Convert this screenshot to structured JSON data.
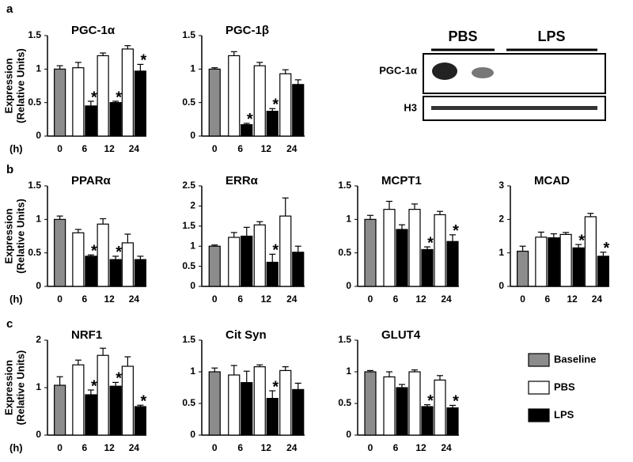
{
  "panel_labels": [
    "a",
    "b",
    "c"
  ],
  "y_label": [
    "Expression",
    "(Relative Units)"
  ],
  "x_label": "(h)",
  "blot": {
    "groups": [
      "PBS",
      "LPS"
    ],
    "rows": [
      "PGC-1α",
      "H3"
    ]
  },
  "chart_data": [
    {
      "type": "bar",
      "title": "PGC-1α",
      "categories": [
        "0",
        "6",
        "12",
        "24"
      ],
      "ylim": [
        0,
        1.5
      ],
      "yticks": [
        0,
        0.5,
        1,
        1.5
      ],
      "series": [
        {
          "name": "Baseline",
          "color": "#8c8c8c",
          "values": [
            1.0,
            null,
            null,
            null
          ],
          "errors": [
            0.05,
            null,
            null,
            null
          ]
        },
        {
          "name": "PBS",
          "color": "#ffffff",
          "values": [
            null,
            1.02,
            1.2,
            1.3
          ],
          "errors": [
            null,
            0.08,
            0.04,
            0.05
          ]
        },
        {
          "name": "LPS",
          "color": "#000000",
          "values": [
            null,
            0.45,
            0.5,
            0.97
          ],
          "errors": [
            null,
            0.07,
            0.02,
            0.1
          ]
        }
      ],
      "annotations": [
        {
          "text": "*",
          "category": "6"
        },
        {
          "text": "*",
          "category": "12"
        },
        {
          "text": "*",
          "category": "24"
        }
      ]
    },
    {
      "type": "bar",
      "title": "PGC-1β",
      "categories": [
        "0",
        "6",
        "12",
        "24"
      ],
      "ylim": [
        0,
        1.5
      ],
      "yticks": [
        0,
        0.5,
        1,
        1.5
      ],
      "series": [
        {
          "name": "Baseline",
          "color": "#8c8c8c",
          "values": [
            1.0,
            null,
            null,
            null
          ],
          "errors": [
            0.02,
            null,
            null,
            null
          ]
        },
        {
          "name": "PBS",
          "color": "#ffffff",
          "values": [
            null,
            1.2,
            1.05,
            0.93
          ],
          "errors": [
            null,
            0.06,
            0.05,
            0.06
          ]
        },
        {
          "name": "LPS",
          "color": "#000000",
          "values": [
            null,
            0.17,
            0.37,
            0.77
          ],
          "errors": [
            null,
            0.02,
            0.04,
            0.07
          ]
        }
      ],
      "annotations": [
        {
          "text": "*",
          "category": "6"
        },
        {
          "text": "*",
          "category": "12"
        }
      ]
    },
    {
      "type": "bar",
      "title": "PPARα",
      "categories": [
        "0",
        "6",
        "12",
        "24"
      ],
      "ylim": [
        0,
        1.5
      ],
      "yticks": [
        0,
        0.5,
        1,
        1.5
      ],
      "series": [
        {
          "name": "Baseline",
          "color": "#8c8c8c",
          "values": [
            1.0,
            null,
            null,
            null
          ],
          "errors": [
            0.05,
            null,
            null,
            null
          ]
        },
        {
          "name": "PBS",
          "color": "#ffffff",
          "values": [
            null,
            0.8,
            0.93,
            0.65
          ],
          "errors": [
            null,
            0.05,
            0.08,
            0.13
          ]
        },
        {
          "name": "LPS",
          "color": "#000000",
          "values": [
            null,
            0.45,
            0.4,
            0.4
          ],
          "errors": [
            null,
            0.02,
            0.05,
            0.05
          ]
        }
      ],
      "annotations": [
        {
          "text": "*",
          "category": "6"
        },
        {
          "text": "*",
          "category": "12"
        }
      ]
    },
    {
      "type": "bar",
      "title": "ERRα",
      "categories": [
        "0",
        "6",
        "12",
        "24"
      ],
      "ylim": [
        0,
        2.5
      ],
      "yticks": [
        0,
        0.5,
        1,
        1.5,
        2,
        2.5
      ],
      "series": [
        {
          "name": "Baseline",
          "color": "#8c8c8c",
          "values": [
            1.0,
            null,
            null,
            null
          ],
          "errors": [
            0.03,
            null,
            null,
            null
          ]
        },
        {
          "name": "PBS",
          "color": "#ffffff",
          "values": [
            null,
            1.22,
            1.53,
            1.75
          ],
          "errors": [
            null,
            0.12,
            0.08,
            0.45
          ]
        },
        {
          "name": "LPS",
          "color": "#000000",
          "values": [
            null,
            1.25,
            0.6,
            0.85
          ],
          "errors": [
            null,
            0.22,
            0.2,
            0.15
          ]
        }
      ],
      "annotations": [
        {
          "text": "*",
          "category": "12"
        }
      ]
    },
    {
      "type": "bar",
      "title": "MCPT1",
      "categories": [
        "0",
        "6",
        "12",
        "24"
      ],
      "ylim": [
        0,
        1.5
      ],
      "yticks": [
        0,
        0.5,
        1,
        1.5
      ],
      "series": [
        {
          "name": "Baseline",
          "color": "#8c8c8c",
          "values": [
            1.0,
            null,
            null,
            null
          ],
          "errors": [
            0.06,
            null,
            null,
            null
          ]
        },
        {
          "name": "PBS",
          "color": "#ffffff",
          "values": [
            null,
            1.15,
            1.15,
            1.07
          ],
          "errors": [
            null,
            0.12,
            0.08,
            0.05
          ]
        },
        {
          "name": "LPS",
          "color": "#000000",
          "values": [
            null,
            0.85,
            0.55,
            0.67
          ],
          "errors": [
            null,
            0.07,
            0.04,
            0.1
          ]
        }
      ],
      "annotations": [
        {
          "text": "*",
          "category": "12"
        },
        {
          "text": "*",
          "category": "24"
        }
      ]
    },
    {
      "type": "bar",
      "title": "MCAD",
      "categories": [
        "0",
        "6",
        "12",
        "24"
      ],
      "ylim": [
        0,
        3
      ],
      "yticks": [
        0,
        1,
        2,
        3
      ],
      "series": [
        {
          "name": "Baseline",
          "color": "#8c8c8c",
          "values": [
            1.05,
            null,
            null,
            null
          ],
          "errors": [
            0.15,
            null,
            null,
            null
          ]
        },
        {
          "name": "PBS",
          "color": "#ffffff",
          "values": [
            null,
            1.47,
            1.55,
            2.08
          ],
          "errors": [
            null,
            0.15,
            0.06,
            0.1
          ]
        },
        {
          "name": "LPS",
          "color": "#000000",
          "values": [
            null,
            1.45,
            1.15,
            0.9
          ],
          "errors": [
            null,
            0.12,
            0.1,
            0.12
          ]
        }
      ],
      "annotations": [
        {
          "text": "*",
          "category": "12"
        },
        {
          "text": "*",
          "category": "24"
        }
      ]
    },
    {
      "type": "bar",
      "title": "NRF1",
      "categories": [
        "0",
        "6",
        "12",
        "24"
      ],
      "ylim": [
        0,
        2
      ],
      "yticks": [
        0,
        1,
        2
      ],
      "series": [
        {
          "name": "Baseline",
          "color": "#8c8c8c",
          "values": [
            1.05,
            null,
            null,
            null
          ],
          "errors": [
            0.18,
            null,
            null,
            null
          ]
        },
        {
          "name": "PBS",
          "color": "#ffffff",
          "values": [
            null,
            1.48,
            1.68,
            1.45
          ],
          "errors": [
            null,
            0.1,
            0.15,
            0.2
          ]
        },
        {
          "name": "LPS",
          "color": "#000000",
          "values": [
            null,
            0.85,
            1.03,
            0.6
          ],
          "errors": [
            null,
            0.1,
            0.08,
            0.03
          ]
        }
      ],
      "annotations": [
        {
          "text": "*",
          "category": "6"
        },
        {
          "text": "*",
          "category": "12"
        },
        {
          "text": "*",
          "category": "24"
        }
      ]
    },
    {
      "type": "bar",
      "title": "Cit Syn",
      "categories": [
        "0",
        "6",
        "12",
        "24"
      ],
      "ylim": [
        0,
        1.5
      ],
      "yticks": [
        0,
        0.5,
        1,
        1.5
      ],
      "series": [
        {
          "name": "Baseline",
          "color": "#8c8c8c",
          "values": [
            1.0,
            null,
            null,
            null
          ],
          "errors": [
            0.06,
            null,
            null,
            null
          ]
        },
        {
          "name": "PBS",
          "color": "#ffffff",
          "values": [
            null,
            0.95,
            1.08,
            1.02
          ],
          "errors": [
            null,
            0.15,
            0.03,
            0.06
          ]
        },
        {
          "name": "LPS",
          "color": "#000000",
          "values": [
            null,
            0.83,
            0.58,
            0.72
          ],
          "errors": [
            null,
            0.18,
            0.12,
            0.1
          ]
        }
      ],
      "annotations": [
        {
          "text": "*",
          "category": "12"
        }
      ]
    },
    {
      "type": "bar",
      "title": "GLUT4",
      "categories": [
        "0",
        "6",
        "12",
        "24"
      ],
      "ylim": [
        0,
        1.5
      ],
      "yticks": [
        0,
        0.5,
        1,
        1.5
      ],
      "series": [
        {
          "name": "Baseline",
          "color": "#8c8c8c",
          "values": [
            1.0,
            null,
            null,
            null
          ],
          "errors": [
            0.02,
            null,
            null,
            null
          ]
        },
        {
          "name": "PBS",
          "color": "#ffffff",
          "values": [
            null,
            0.92,
            1.0,
            0.87
          ],
          "errors": [
            null,
            0.08,
            0.03,
            0.07
          ]
        },
        {
          "name": "LPS",
          "color": "#000000",
          "values": [
            null,
            0.75,
            0.45,
            0.43
          ],
          "errors": [
            null,
            0.05,
            0.03,
            0.04
          ]
        }
      ],
      "annotations": [
        {
          "text": "*",
          "category": "12"
        },
        {
          "text": "*",
          "category": "24"
        }
      ]
    }
  ]
}
